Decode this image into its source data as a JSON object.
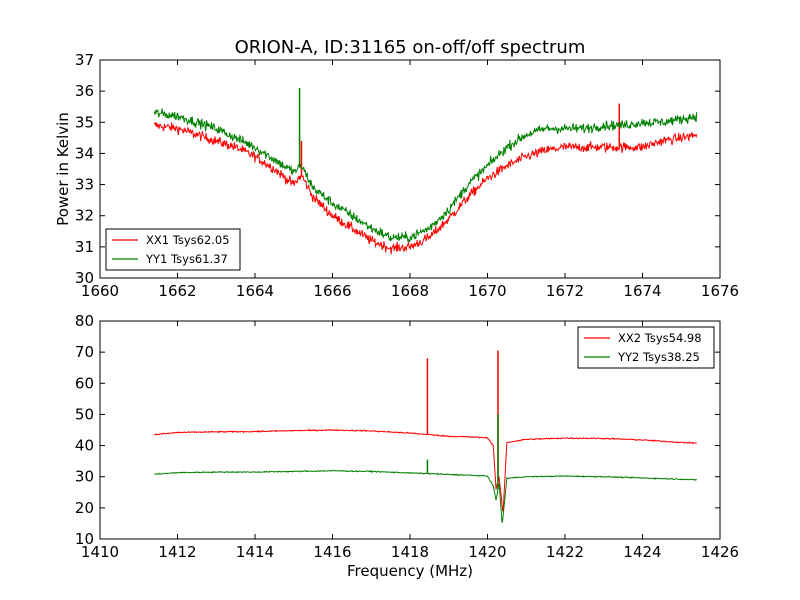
{
  "title": "ORION-A, ID:31165 on-off/off spectrum",
  "chart_data": [
    {
      "type": "line",
      "ylabel": "Power in Kelvin",
      "xlabel": "",
      "xlim": [
        1660,
        1676
      ],
      "ylim": [
        30,
        37
      ],
      "xticks": [
        "1660",
        "1662",
        "1664",
        "1666",
        "1668",
        "1670",
        "1672",
        "1674",
        "1676"
      ],
      "yticks": [
        "30",
        "31",
        "32",
        "33",
        "34",
        "35",
        "36",
        "37"
      ],
      "legend_position": "lower-left",
      "series": [
        {
          "name": "XX1 Tsys62.05",
          "color": "#ff0000",
          "noise": 0.28,
          "x": [
            1661.4,
            1662,
            1662.5,
            1663,
            1663.5,
            1664,
            1664.5,
            1665,
            1665.2,
            1665.5,
            1666,
            1666.5,
            1667,
            1667.5,
            1668,
            1668.5,
            1669,
            1669.5,
            1670,
            1670.5,
            1671,
            1671.5,
            1672,
            1672.5,
            1673,
            1673.5,
            1674,
            1674.5,
            1675,
            1675.4
          ],
          "y": [
            34.9,
            34.8,
            34.6,
            34.4,
            34.2,
            33.9,
            33.5,
            33.0,
            33.3,
            32.6,
            32.0,
            31.6,
            31.2,
            30.95,
            31.0,
            31.3,
            31.9,
            32.6,
            33.2,
            33.6,
            33.9,
            34.1,
            34.2,
            34.2,
            34.2,
            34.2,
            34.2,
            34.4,
            34.5,
            34.6
          ],
          "spikes": [
            [
              1665.2,
              34.4
            ],
            [
              1673.4,
              35.6
            ]
          ]
        },
        {
          "name": "YY1 Tsys61.37",
          "color": "#008000",
          "noise": 0.28,
          "x": [
            1661.4,
            1662,
            1662.5,
            1663,
            1663.5,
            1664,
            1664.5,
            1665,
            1665.2,
            1665.5,
            1666,
            1666.5,
            1667,
            1667.5,
            1668,
            1668.5,
            1669,
            1669.5,
            1670,
            1670.5,
            1671,
            1671.5,
            1672,
            1672.5,
            1673,
            1673.5,
            1674,
            1674.5,
            1675,
            1675.4
          ],
          "y": [
            35.3,
            35.2,
            35.0,
            34.8,
            34.5,
            34.2,
            33.8,
            33.4,
            33.6,
            32.9,
            32.4,
            32.0,
            31.6,
            31.3,
            31.3,
            31.6,
            32.2,
            33.0,
            33.6,
            34.2,
            34.6,
            34.8,
            34.8,
            34.8,
            34.9,
            34.9,
            35.0,
            35.0,
            35.1,
            35.2
          ],
          "spikes": [
            [
              1665.15,
              36.1
            ]
          ]
        }
      ]
    },
    {
      "type": "line",
      "ylabel": "",
      "xlabel": "Frequency (MHz)",
      "xlim": [
        1410,
        1426
      ],
      "ylim": [
        10,
        80
      ],
      "xticks": [
        "1410",
        "1412",
        "1414",
        "1416",
        "1418",
        "1420",
        "1422",
        "1424",
        "1426"
      ],
      "yticks": [
        "10",
        "20",
        "30",
        "40",
        "50",
        "60",
        "70",
        "80"
      ],
      "legend_position": "upper-right",
      "series": [
        {
          "name": "XX2 Tsys54.98",
          "color": "#ff0000",
          "noise": 0.35,
          "x": [
            1411.4,
            1412,
            1413,
            1414,
            1415,
            1416,
            1417,
            1418,
            1418.5,
            1419,
            1419.5,
            1420,
            1420.15,
            1420.22,
            1420.3,
            1420.4,
            1420.5,
            1421,
            1422,
            1423,
            1424,
            1425,
            1425.4
          ],
          "y": [
            43.5,
            44.2,
            44.4,
            44.5,
            44.8,
            45.0,
            44.7,
            44.0,
            43.5,
            43.0,
            42.8,
            42.5,
            40.0,
            26.0,
            30.0,
            18.0,
            41.0,
            42.0,
            42.4,
            42.3,
            41.8,
            41.0,
            40.8
          ],
          "spikes": [
            [
              1418.45,
              68
            ],
            [
              1420.27,
              70.5
            ]
          ]
        },
        {
          "name": "YY2 Tsys38.25",
          "color": "#008000",
          "noise": 0.3,
          "x": [
            1411.4,
            1412,
            1413,
            1414,
            1415,
            1416,
            1417,
            1418,
            1418.5,
            1419,
            1419.5,
            1420,
            1420.15,
            1420.22,
            1420.3,
            1420.38,
            1420.5,
            1421,
            1422,
            1423,
            1424,
            1425,
            1425.4
          ],
          "y": [
            30.8,
            31.3,
            31.5,
            31.5,
            31.7,
            31.9,
            31.7,
            31.2,
            31.0,
            30.7,
            30.5,
            30.2,
            27.0,
            22.5,
            28.0,
            14.5,
            29.5,
            30.0,
            30.2,
            30.0,
            29.6,
            29.2,
            29.0
          ],
          "spikes": [
            [
              1418.45,
              35.5
            ],
            [
              1420.27,
              50
            ]
          ]
        }
      ]
    }
  ]
}
